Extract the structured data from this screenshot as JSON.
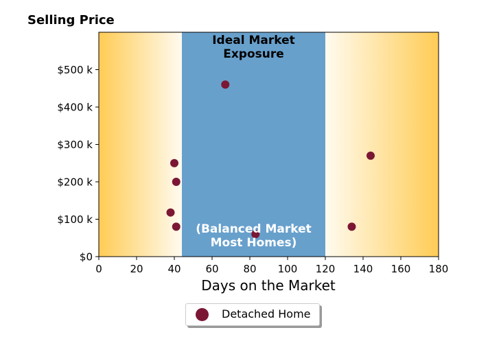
{
  "chart_data": {
    "type": "scatter",
    "title": "Selling Price",
    "xlabel": "Days on the Market",
    "ylabel": "",
    "xlim": [
      0,
      180
    ],
    "ylim": [
      0,
      600000
    ],
    "x_ticks": [
      0,
      20,
      40,
      60,
      80,
      100,
      120,
      140,
      160,
      180
    ],
    "x_tick_labels": [
      "0",
      "20",
      "40",
      "60",
      "80",
      "100",
      "120",
      "140",
      "160",
      "180"
    ],
    "y_ticks": [
      0,
      100000,
      200000,
      300000,
      400000,
      500000
    ],
    "y_tick_labels": [
      "$0",
      "$100 k",
      "$200 k",
      "$300 k",
      "$400 k",
      "$500 k"
    ],
    "grid": false,
    "legend_position": "bottom-center",
    "series": [
      {
        "name": "Detached Home",
        "color": "#7b1734",
        "points": [
          {
            "x": 38,
            "y": 118000
          },
          {
            "x": 40,
            "y": 250000
          },
          {
            "x": 41,
            "y": 200000
          },
          {
            "x": 41,
            "y": 80000
          },
          {
            "x": 67,
            "y": 460000
          },
          {
            "x": 83,
            "y": 60000
          },
          {
            "x": 134,
            "y": 80000
          },
          {
            "x": 144,
            "y": 270000
          }
        ]
      }
    ],
    "bands": [
      {
        "type": "gradient",
        "x_start": 0,
        "x_end": 44,
        "color_edge": "#ffcc55",
        "color_inner": "#fffbf0"
      },
      {
        "type": "solid",
        "x_start": 44,
        "x_end": 120,
        "color": "#68a0cc"
      },
      {
        "type": "gradient",
        "x_start": 120,
        "x_end": 180,
        "color_edge": "#ffcc55",
        "color_inner": "#fffbf0"
      }
    ],
    "annotations": [
      {
        "id": "ideal",
        "lines": [
          "Ideal Market",
          "Exposure"
        ],
        "color": "#000000"
      },
      {
        "id": "balanced",
        "lines": [
          "(Balanced Market",
          "Most Homes)"
        ],
        "color": "#ffffff"
      }
    ]
  }
}
